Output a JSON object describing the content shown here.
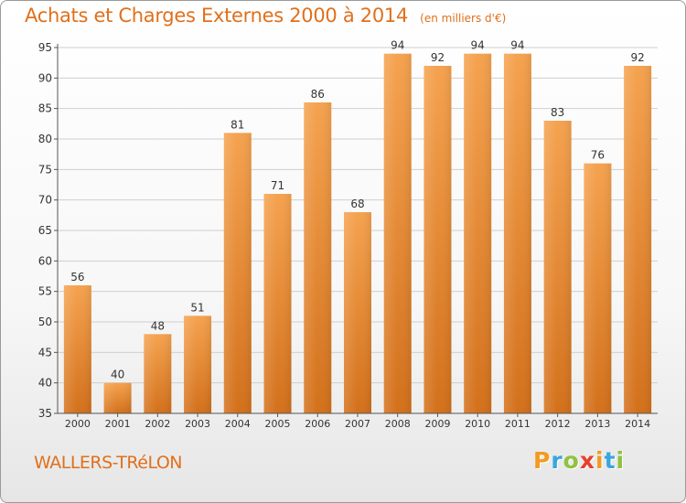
{
  "chart_data": {
    "type": "bar",
    "title": "Achats et Charges Externes 2000 à 2014",
    "subtitle": "(en milliers d'€)",
    "categories": [
      "2000",
      "2001",
      "2002",
      "2003",
      "2004",
      "2005",
      "2006",
      "2007",
      "2008",
      "2009",
      "2010",
      "2011",
      "2012",
      "2013",
      "2014"
    ],
    "values": [
      56,
      40,
      48,
      51,
      81,
      71,
      86,
      68,
      94,
      92,
      94,
      94,
      83,
      76,
      92
    ],
    "ylim": [
      35,
      95
    ],
    "yticks": [
      35,
      40,
      45,
      50,
      55,
      60,
      65,
      70,
      75,
      80,
      85,
      90,
      95
    ],
    "grid": true,
    "bar_colors": {
      "light": "#f5a24e",
      "dark": "#d3701a"
    }
  },
  "footer": {
    "commune": "WALLERS-TRéLON",
    "logo_letters": [
      "P",
      "r",
      "o",
      "x",
      "i",
      "t",
      "i"
    ],
    "logo_colors": [
      "#f39a1f",
      "#3aa6dd",
      "#8fc23f",
      "#e8402a",
      "#f39a1f",
      "#3aa6dd",
      "#8fc23f"
    ]
  }
}
